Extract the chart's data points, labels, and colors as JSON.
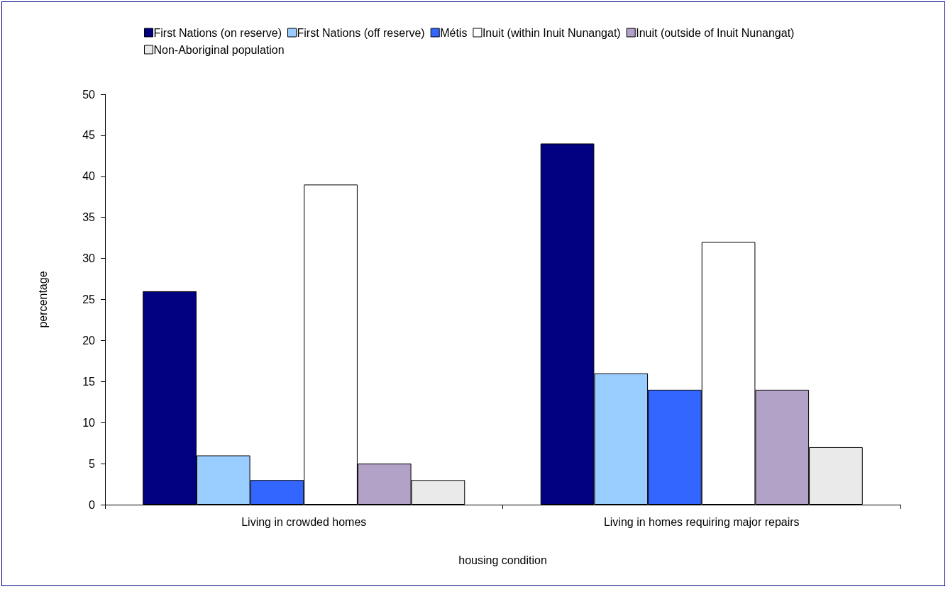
{
  "chart_data": {
    "type": "bar",
    "xlabel": "housing condition",
    "ylabel": "percentage",
    "categories": [
      "Living in crowded homes",
      "Living in homes requiring major repairs"
    ],
    "series": [
      {
        "name": "First Nations (on reserve)",
        "color": "#000080",
        "values": [
          26,
          44
        ]
      },
      {
        "name": "First Nations (off reserve)",
        "color": "#99ccff",
        "values": [
          6,
          16
        ]
      },
      {
        "name": "Métis",
        "color": "#3366ff",
        "values": [
          3,
          14
        ]
      },
      {
        "name": "Inuit (within Inuit Nunangat)",
        "color": "#ffffff",
        "values": [
          39,
          32
        ]
      },
      {
        "name": "Inuit (outside of Inuit Nunangat)",
        "color": "#b3a2c7",
        "values": [
          5,
          14
        ]
      },
      {
        "name": "Non-Aboriginal population",
        "color": "#eaeaea",
        "values": [
          3,
          7
        ]
      }
    ],
    "ylim": [
      0,
      50
    ],
    "yticks": [
      0,
      5,
      10,
      15,
      20,
      25,
      30,
      35,
      40,
      45,
      50
    ],
    "grid": false,
    "legend": "top"
  }
}
